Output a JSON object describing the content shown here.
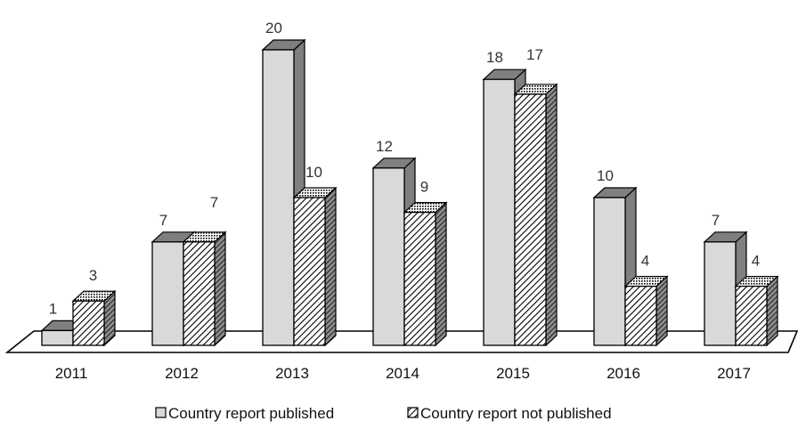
{
  "chart_data": {
    "type": "bar",
    "style": "3d-clustered",
    "categories": [
      "2011",
      "2012",
      "2013",
      "2014",
      "2015",
      "2016",
      "2017"
    ],
    "series": [
      {
        "name": "Country report published",
        "values": [
          1,
          7,
          20,
          12,
          18,
          10,
          7
        ],
        "color": "#d9d9d9",
        "pattern": "solid"
      },
      {
        "name": "Country report not published",
        "values": [
          3,
          7,
          10,
          9,
          17,
          4,
          4
        ],
        "color": "#ffffff",
        "pattern": "diagonal-hatch"
      }
    ],
    "title": "",
    "xlabel": "",
    "ylabel": "",
    "ylim": [
      0,
      20
    ],
    "grid": false,
    "legend_position": "bottom"
  },
  "colors": {
    "side": "#7f7f7f",
    "outline": "#000000",
    "floor": "#ffffff"
  }
}
